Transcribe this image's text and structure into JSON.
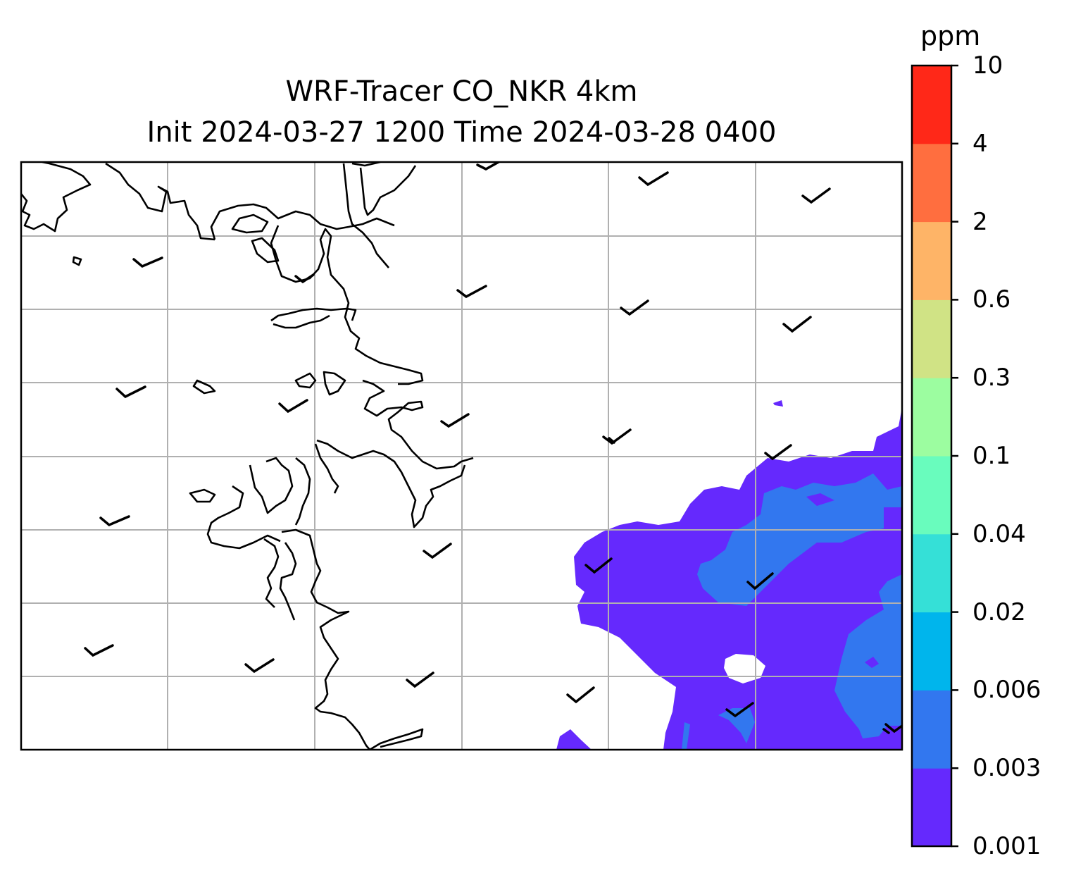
{
  "title": {
    "line1": "WRF-Tracer CO_NKR 4km",
    "line2": "Init 2024-03-27 1200 Time 2024-03-28 0400"
  },
  "colorbar": {
    "unit": "ppm",
    "levels": [
      "0.001",
      "0.003",
      "0.006",
      "0.02",
      "0.04",
      "0.1",
      "0.3",
      "0.6",
      "2",
      "4",
      "10"
    ],
    "colors": [
      "#6529fd",
      "#3277ef",
      "#00b5ec",
      "#35e0d7",
      "#69fcbd",
      "#9cfda0",
      "#d0e385",
      "#feb467",
      "#ff6e3f",
      "#ff2818"
    ]
  },
  "map": {
    "gridlines": true,
    "coastline_color": "#000000",
    "gridline_color": "#b0b0b0",
    "wind_barb_count": 25,
    "tracer_field_colors": [
      "#6529fd",
      "#3277ef"
    ]
  }
}
